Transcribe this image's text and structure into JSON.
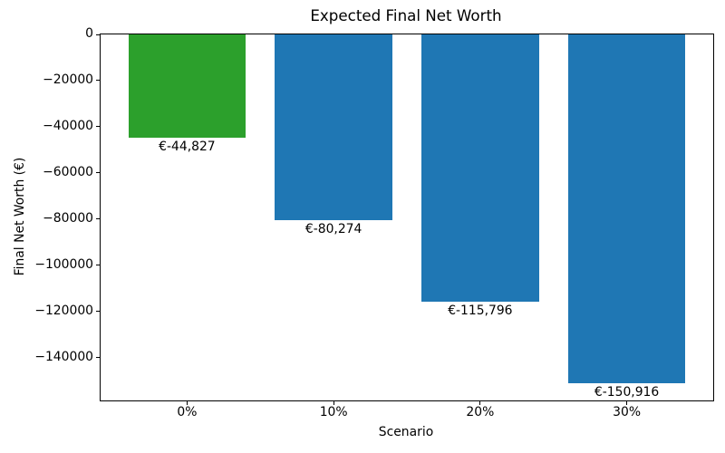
{
  "chart_data": {
    "type": "bar",
    "title": "Expected Final Net Worth",
    "xlabel": "Scenario",
    "ylabel": "Final Net Worth (€)",
    "categories": [
      "0%",
      "10%",
      "20%",
      "30%"
    ],
    "values": [
      -44827,
      -80274,
      -115796,
      -150916
    ],
    "bar_labels": [
      "€-44,827",
      "€-80,274",
      "€-115,796",
      "€-150,916"
    ],
    "bar_colors": [
      "#2ca02c",
      "#1f77b4",
      "#1f77b4",
      "#1f77b4"
    ],
    "bar_width": 0.8,
    "xlim": [
      -0.59,
      3.59
    ],
    "ylim": [
      -158460,
      0
    ],
    "yticks": [
      {
        "value": 0,
        "label": "0"
      },
      {
        "value": -20000,
        "label": "−20000"
      },
      {
        "value": -40000,
        "label": "−40000"
      },
      {
        "value": -60000,
        "label": "−60000"
      },
      {
        "value": -80000,
        "label": "−80000"
      },
      {
        "value": -100000,
        "label": "−100000"
      },
      {
        "value": -120000,
        "label": "−120000"
      },
      {
        "value": -140000,
        "label": "−140000"
      }
    ],
    "grid": false,
    "legend_visible": false
  }
}
